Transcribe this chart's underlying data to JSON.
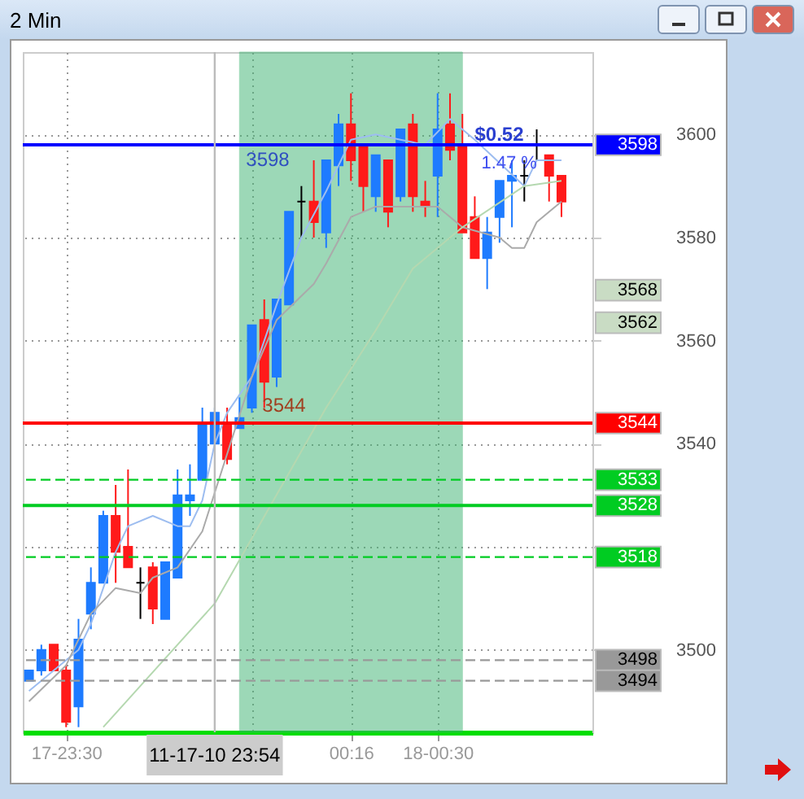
{
  "chart_data": {
    "type": "candlestick",
    "title": "2 Min",
    "x": [
      "--11-17T23:24",
      "--11-17T23:26",
      "--11-17T23:28",
      "--11-17T23:30",
      "--11-17T23:32",
      "--11-17T23:34",
      "--11-17T23:36",
      "--11-17T23:38",
      "--11-17T23:40",
      "--11-17T23:42",
      "--11-17T23:44",
      "--11-17T23:46",
      "--11-17T23:48",
      "--11-17T23:50",
      "--11-17T23:52",
      "--11-17T23:54",
      "--11-17T23:56",
      "--11-17T23:58",
      "--11-18T00:00",
      "--11-18T00:02",
      "--11-18T00:04",
      "--11-18T00:06",
      "--11-18T00:08",
      "--11-18T00:10",
      "--11-18T00:12",
      "--11-18T00:14",
      "--11-18T00:16",
      "--11-18T00:18",
      "--11-18T00:20",
      "--11-18T00:22",
      "--11-18T00:24",
      "--11-18T00:26",
      "--11-18T00:28",
      "--11-18T00:30",
      "--11-18T00:32",
      "--11-18T00:34",
      "--11-18T00:36",
      "--11-18T00:38",
      "--11-18T00:40",
      "--11-18T00:42",
      "--11-18T00:44",
      "--11-18T00:46",
      "--11-18T00:48",
      "--11-18T00:50"
    ],
    "ohlc": [
      [
        3494,
        3496,
        3494,
        3496
      ],
      [
        3496,
        3501,
        3495,
        3500
      ],
      [
        3501,
        3501,
        3496,
        3496
      ],
      [
        3496,
        3497,
        3485,
        3486
      ],
      [
        3489,
        3506,
        3485,
        3502
      ],
      [
        3507,
        3516,
        3504,
        3513
      ],
      [
        3513,
        3527,
        3513,
        3526
      ],
      [
        3526,
        3532,
        3513,
        3519
      ],
      [
        3520,
        3535,
        3516,
        3516
      ],
      [
        3513,
        3516,
        3506,
        3513
      ],
      [
        3516,
        3517,
        3505,
        3508
      ],
      [
        3506,
        3517,
        3506,
        3517
      ],
      [
        3514,
        3535,
        3514,
        3530
      ],
      [
        3529,
        3536,
        3526,
        3530
      ],
      [
        3533,
        3547,
        3533,
        3544
      ],
      [
        3540,
        3547,
        3540,
        3546
      ],
      [
        3544,
        3547,
        3536,
        3537
      ],
      [
        3543,
        3549,
        3543,
        3545
      ],
      [
        3547,
        3563,
        3546,
        3563
      ],
      [
        3564,
        3568,
        3547,
        3552
      ],
      [
        3553,
        3568,
        3551,
        3568
      ],
      [
        3567,
        3585,
        3567,
        3585
      ],
      [
        3587,
        3590,
        3580,
        3587
      ],
      [
        3587,
        3595,
        3580,
        3583
      ],
      [
        3581,
        3595,
        3578,
        3595
      ],
      [
        3594,
        3604,
        3590,
        3602
      ],
      [
        3602,
        3608,
        3591,
        3595
      ],
      [
        3598,
        3598,
        3585,
        3590
      ],
      [
        3588,
        3596,
        3585,
        3596
      ],
      [
        3595,
        3595,
        3582,
        3585
      ],
      [
        3588,
        3601,
        3587,
        3601
      ],
      [
        3602,
        3604,
        3585,
        3588
      ],
      [
        3587,
        3591,
        3584,
        3586
      ],
      [
        3592,
        3608,
        3584,
        3601
      ],
      [
        3602,
        3608,
        3595,
        3597
      ],
      [
        3598,
        3604,
        3581,
        3581
      ],
      [
        3584,
        3588,
        3576,
        3576
      ],
      [
        3576,
        3584,
        3570,
        3581
      ],
      [
        3584,
        3591,
        3579,
        3591
      ],
      [
        3591,
        3595,
        3582,
        3592
      ],
      [
        3592,
        3595,
        3587,
        3592
      ],
      [
        3598,
        3601,
        3595,
        3598
      ],
      [
        3596,
        3596,
        3587,
        3592
      ],
      [
        3592,
        3592,
        3584,
        3587
      ]
    ],
    "colors": [
      "#1e7bff",
      "#1e7bff",
      "#ff1a1a",
      "#ff1a1a",
      "#1e7bff",
      "#1e7bff",
      "#1e7bff",
      "#ff1a1a",
      "#ff1a1a",
      "#000000",
      "#ff1a1a",
      "#1e7bff",
      "#1e7bff",
      "#1e7bff",
      "#1e7bff",
      "#1e7bff",
      "#ff1a1a",
      "#1e7bff",
      "#1e7bff",
      "#ff1a1a",
      "#1e7bff",
      "#1e7bff",
      "#000000",
      "#ff1a1a",
      "#1e7bff",
      "#1e7bff",
      "#ff1a1a",
      "#ff1a1a",
      "#1e7bff",
      "#ff1a1a",
      "#1e7bff",
      "#ff1a1a",
      "#ff1a1a",
      "#1e7bff",
      "#ff1a1a",
      "#ff1a1a",
      "#ff1a1a",
      "#1e7bff",
      "#1e7bff",
      "#1e7bff",
      "#000000",
      "#000000",
      "#ff1a1a",
      "#ff1a1a"
    ],
    "series": [
      {
        "type": "line",
        "color": "#9dbdf0",
        "x": [
          "--11-17T23:24",
          "--11-17T23:32",
          "--11-17T23:34",
          "--11-17T23:38",
          "--11-17T23:40",
          "--11-17T23:44",
          "--11-17T23:48",
          "--11-17T23:50",
          "--11-17T23:52",
          "--11-17T23:54",
          "--11-17T23:56",
          "--11-18T00:00",
          "--11-18T00:04",
          "--11-18T00:08",
          "--11-18T00:12",
          "--11-18T00:16",
          "--11-18T00:20",
          "--11-18T00:24",
          "--11-18T00:28",
          "--11-18T00:32",
          "--11-18T00:36",
          "--11-18T00:44",
          "--11-18T00:46",
          "--11-18T00:50"
        ],
        "values": [
          3492,
          3500,
          3505,
          3519,
          3524,
          3526,
          3524,
          3524,
          3529,
          3540,
          3546,
          3553,
          3567,
          3580,
          3589,
          3599,
          3600,
          3599,
          3598,
          3603,
          3599,
          3590,
          3595,
          3595
        ]
      },
      {
        "type": "line",
        "color": "#aaaaaa",
        "x": [
          "--11-17T23:24",
          "--11-17T23:30",
          "--11-17T23:34",
          "--11-17T23:38",
          "--11-17T23:42",
          "--11-17T23:44",
          "--11-17T23:48",
          "--11-17T23:52",
          "--11-17T23:56",
          "--11-18T00:00",
          "--11-18T00:04",
          "--11-18T00:10",
          "--11-18T00:12",
          "--11-18T00:16",
          "--11-18T00:20",
          "--11-18T00:30",
          "--11-18T00:34",
          "--11-18T00:40",
          "--11-18T00:42",
          "--11-18T00:44",
          "--11-18T00:46",
          "--11-18T00:50"
        ],
        "values": [
          3490,
          3497,
          3507,
          3512,
          3511,
          3514,
          3516,
          3523,
          3538,
          3553,
          3564,
          3571,
          3575,
          3584,
          3586,
          3586,
          3582,
          3580,
          3578,
          3578,
          3583,
          3587
        ]
      },
      {
        "type": "line",
        "color": "#b5d8b0",
        "x": [
          "--11-17T23:36",
          "--11-17T23:54",
          "--11-18T00:12",
          "--11-18T00:20",
          "--11-18T00:26",
          "--11-18T00:34",
          "--11-18T00:44",
          "--11-18T00:50"
        ],
        "values": [
          3485,
          3509,
          3547,
          3562,
          3574,
          3582,
          3590,
          3591
        ]
      }
    ],
    "xlim": [
      "--11-17T23:23",
      "--11-18T00:55"
    ],
    "xticks": [
      {
        "value": "--11-17T23:30",
        "label": "17-23:30"
      },
      {
        "value": "--11-18T00:00",
        "label": null
      },
      {
        "value": "--11-18T00:16",
        "label": "00:16"
      },
      {
        "value": "--11-18T00:30",
        "label": "18-00:30"
      }
    ],
    "ylim": [
      3484,
      3616
    ],
    "yticks": [
      3500,
      {
        "value": 3520,
        "label": null
      },
      3540,
      3560,
      3580,
      3600
    ],
    "grid": true,
    "ref_lines": [
      {
        "axis": "y",
        "value": 3598,
        "label": "3598",
        "color": "#0000ff",
        "line_style": "solid"
      },
      {
        "axis": "y",
        "value": 3544,
        "label": "3544",
        "color": "#ff0000",
        "line_style": "solid"
      },
      {
        "axis": "y",
        "value": 3533,
        "label": "3533",
        "color": "#00cc22",
        "line_style": "dashed"
      },
      {
        "axis": "y",
        "value": 3528,
        "label": "3528",
        "color": "#00cc22",
        "line_style": "solid"
      },
      {
        "axis": "y",
        "value": 3518,
        "label": "3518",
        "color": "#00cc22",
        "line_style": "dashed"
      },
      {
        "axis": "y",
        "value": 3498,
        "label": "3498",
        "color": "#999999",
        "line_style": "dashed"
      },
      {
        "axis": "y",
        "value": 3494,
        "label": "3494",
        "color": "#999999",
        "line_style": "dashed"
      },
      {
        "axis": "x",
        "value": "--11-17T23:54",
        "label": "11-17-10 23:54",
        "color": "#bbbbbb",
        "line_style": "solid"
      }
    ],
    "bands": [
      {
        "axis": "x",
        "from": "--11-17T23:58",
        "to": "--11-18T00:34",
        "color": "#3cb371"
      }
    ],
    "annotations": [
      "3598",
      "3544",
      {
        "text": "$0.52",
        "x": "--11-18T00:36",
        "y": 3600
      },
      "1.47 %",
      "3568",
      "3562"
    ]
  }
}
